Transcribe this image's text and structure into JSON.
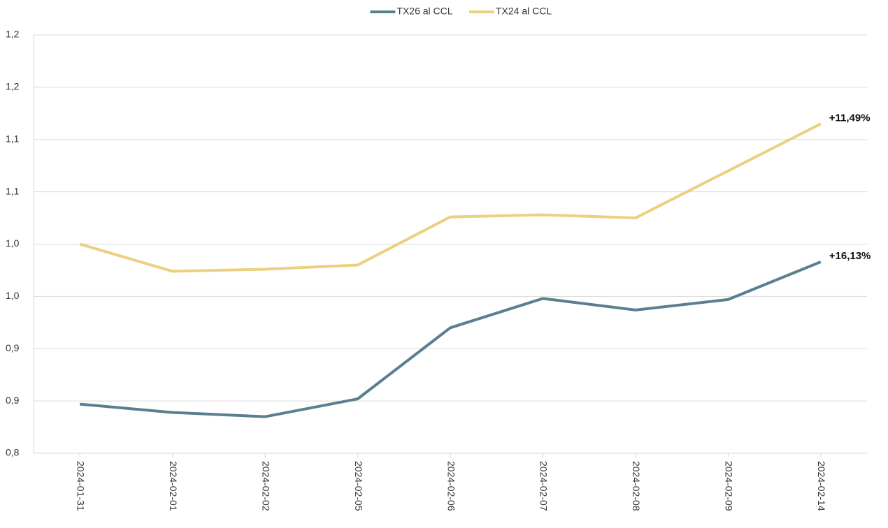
{
  "chart_data": {
    "type": "line",
    "categories": [
      "2024-01-31",
      "2024-02-01",
      "2024-02-02",
      "2024-02-05",
      "2024-02-06",
      "2024-02-07",
      "2024-02-08",
      "2024-02-09",
      "2024-02-14"
    ],
    "series": [
      {
        "name": "TX26 al CCL",
        "color": "#5a7f91",
        "values": [
          0.847,
          0.839,
          0.835,
          0.852,
          0.92,
          0.948,
          0.937,
          0.947,
          0.983
        ]
      },
      {
        "name": "TX24 al CCL",
        "color": "#ecd081",
        "values": [
          1.0,
          0.974,
          0.976,
          0.98,
          1.026,
          1.028,
          1.025,
          1.07,
          1.115
        ]
      }
    ],
    "annotations": [
      {
        "text": "+16,13%",
        "series": "TX26 al CCL"
      },
      {
        "text": "+11,49%",
        "series": "TX24 al CCL"
      }
    ],
    "ylim": [
      0.8,
      1.2
    ],
    "yticks": [
      {
        "value": 0.8,
        "label": "0,8"
      },
      {
        "value": 0.85,
        "label": "0,9"
      },
      {
        "value": 0.9,
        "label": "0,9"
      },
      {
        "value": 0.95,
        "label": "1,0"
      },
      {
        "value": 1.0,
        "label": "1,0"
      },
      {
        "value": 1.05,
        "label": "1,1"
      },
      {
        "value": 1.1,
        "label": "1,1"
      },
      {
        "value": 1.15,
        "label": "1,2"
      },
      {
        "value": 1.2,
        "label": "1,2"
      }
    ],
    "grid": true,
    "legend": "top"
  }
}
